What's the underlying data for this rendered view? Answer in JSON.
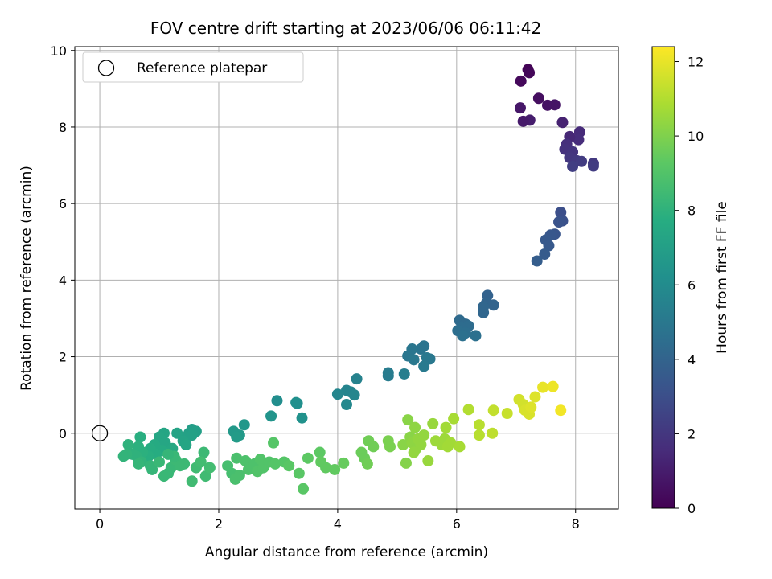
{
  "chart_data": {
    "type": "scatter",
    "title": "FOV centre drift starting at 2023/06/06 06:11:42",
    "xlabel": "Angular distance from reference (arcmin)",
    "ylabel": "Rotation from reference (arcmin)",
    "xlim": [
      -0.42,
      8.72
    ],
    "ylim": [
      -1.98,
      10.1
    ],
    "xticks": [
      0,
      2,
      4,
      6,
      8
    ],
    "yticks": [
      0,
      2,
      4,
      6,
      8,
      10
    ],
    "grid": true,
    "legend": {
      "placement": "top-left",
      "entries": [
        "Reference platepar"
      ]
    },
    "reference_point": {
      "x": 0,
      "y": 0,
      "label": "Reference platepar"
    },
    "colorbar": {
      "label": "Hours from first FF file",
      "colormap": "viridis",
      "min": 0,
      "max": 12.4,
      "ticks": [
        0,
        2,
        4,
        6,
        8,
        10,
        12
      ]
    },
    "points": [
      {
        "x": 7.2,
        "y": 9.5,
        "c": 0.1
      },
      {
        "x": 7.22,
        "y": 9.42,
        "c": 0.2
      },
      {
        "x": 7.08,
        "y": 9.2,
        "c": 0.3
      },
      {
        "x": 7.38,
        "y": 8.75,
        "c": 0.5
      },
      {
        "x": 7.53,
        "y": 8.57,
        "c": 0.6
      },
      {
        "x": 7.65,
        "y": 8.58,
        "c": 0.7
      },
      {
        "x": 7.07,
        "y": 8.5,
        "c": 0.8
      },
      {
        "x": 7.23,
        "y": 8.18,
        "c": 1.0
      },
      {
        "x": 7.12,
        "y": 8.15,
        "c": 0.9
      },
      {
        "x": 7.78,
        "y": 8.12,
        "c": 1.2
      },
      {
        "x": 8.07,
        "y": 7.87,
        "c": 1.5
      },
      {
        "x": 8.05,
        "y": 7.67,
        "c": 1.6
      },
      {
        "x": 7.9,
        "y": 7.75,
        "c": 1.4
      },
      {
        "x": 7.85,
        "y": 7.55,
        "c": 1.7
      },
      {
        "x": 7.82,
        "y": 7.42,
        "c": 1.8
      },
      {
        "x": 7.95,
        "y": 7.35,
        "c": 1.9
      },
      {
        "x": 7.9,
        "y": 7.2,
        "c": 2.0
      },
      {
        "x": 8.02,
        "y": 7.12,
        "c": 2.1
      },
      {
        "x": 8.1,
        "y": 7.1,
        "c": 2.2
      },
      {
        "x": 7.95,
        "y": 6.97,
        "c": 2.3
      },
      {
        "x": 8.3,
        "y": 7.05,
        "c": 2.1
      },
      {
        "x": 8.3,
        "y": 6.98,
        "c": 2.2
      },
      {
        "x": 7.75,
        "y": 5.77,
        "c": 3.0
      },
      {
        "x": 7.78,
        "y": 5.55,
        "c": 3.1
      },
      {
        "x": 7.72,
        "y": 5.52,
        "c": 3.2
      },
      {
        "x": 7.65,
        "y": 5.2,
        "c": 3.3
      },
      {
        "x": 7.58,
        "y": 5.18,
        "c": 3.4
      },
      {
        "x": 7.5,
        "y": 5.05,
        "c": 3.5
      },
      {
        "x": 7.55,
        "y": 4.9,
        "c": 3.5
      },
      {
        "x": 7.48,
        "y": 4.68,
        "c": 3.6
      },
      {
        "x": 7.35,
        "y": 4.5,
        "c": 3.7
      },
      {
        "x": 6.52,
        "y": 3.6,
        "c": 3.9
      },
      {
        "x": 6.5,
        "y": 3.4,
        "c": 4.0
      },
      {
        "x": 6.62,
        "y": 3.35,
        "c": 4.0
      },
      {
        "x": 6.45,
        "y": 3.3,
        "c": 4.1
      },
      {
        "x": 6.45,
        "y": 3.15,
        "c": 4.1
      },
      {
        "x": 6.05,
        "y": 2.95,
        "c": 4.3
      },
      {
        "x": 6.15,
        "y": 2.85,
        "c": 4.3
      },
      {
        "x": 6.2,
        "y": 2.8,
        "c": 4.4
      },
      {
        "x": 6.08,
        "y": 2.75,
        "c": 4.4
      },
      {
        "x": 6.02,
        "y": 2.68,
        "c": 4.5
      },
      {
        "x": 6.15,
        "y": 2.62,
        "c": 4.5
      },
      {
        "x": 6.1,
        "y": 2.55,
        "c": 4.6
      },
      {
        "x": 6.32,
        "y": 2.55,
        "c": 4.6
      },
      {
        "x": 5.45,
        "y": 2.28,
        "c": 4.8
      },
      {
        "x": 5.4,
        "y": 2.2,
        "c": 4.8
      },
      {
        "x": 5.25,
        "y": 2.2,
        "c": 4.9
      },
      {
        "x": 5.18,
        "y": 2.02,
        "c": 4.9
      },
      {
        "x": 5.5,
        "y": 1.97,
        "c": 5.0
      },
      {
        "x": 5.55,
        "y": 1.94,
        "c": 5.0
      },
      {
        "x": 5.28,
        "y": 1.92,
        "c": 5.0
      },
      {
        "x": 5.45,
        "y": 1.75,
        "c": 5.1
      },
      {
        "x": 4.85,
        "y": 1.58,
        "c": 5.2
      },
      {
        "x": 4.85,
        "y": 1.5,
        "c": 5.2
      },
      {
        "x": 5.12,
        "y": 1.55,
        "c": 5.3
      },
      {
        "x": 4.32,
        "y": 1.42,
        "c": 5.5
      },
      {
        "x": 4.15,
        "y": 1.12,
        "c": 5.6
      },
      {
        "x": 4.22,
        "y": 1.08,
        "c": 5.6
      },
      {
        "x": 4.28,
        "y": 1.0,
        "c": 5.7
      },
      {
        "x": 4.0,
        "y": 1.02,
        "c": 5.7
      },
      {
        "x": 4.15,
        "y": 0.75,
        "c": 5.8
      },
      {
        "x": 2.98,
        "y": 0.85,
        "c": 6.1
      },
      {
        "x": 3.3,
        "y": 0.8,
        "c": 6.2
      },
      {
        "x": 3.32,
        "y": 0.78,
        "c": 6.2
      },
      {
        "x": 3.4,
        "y": 0.4,
        "c": 6.3
      },
      {
        "x": 2.88,
        "y": 0.45,
        "c": 6.4
      },
      {
        "x": 2.43,
        "y": 0.22,
        "c": 6.6
      },
      {
        "x": 2.25,
        "y": 0.05,
        "c": 6.7
      },
      {
        "x": 2.35,
        "y": -0.05,
        "c": 6.7
      },
      {
        "x": 2.3,
        "y": -0.1,
        "c": 6.8
      },
      {
        "x": 1.55,
        "y": 0.1,
        "c": 6.9
      },
      {
        "x": 1.62,
        "y": 0.05,
        "c": 7.0
      },
      {
        "x": 1.5,
        "y": 0.0,
        "c": 7.0
      },
      {
        "x": 1.45,
        "y": -0.1,
        "c": 7.1
      },
      {
        "x": 1.55,
        "y": -0.05,
        "c": 7.1
      },
      {
        "x": 1.3,
        "y": 0.0,
        "c": 7.2
      },
      {
        "x": 1.4,
        "y": -0.2,
        "c": 7.2
      },
      {
        "x": 1.45,
        "y": -0.3,
        "c": 7.3
      },
      {
        "x": 1.08,
        "y": 0.0,
        "c": 7.3
      },
      {
        "x": 1.0,
        "y": -0.1,
        "c": 7.4
      },
      {
        "x": 1.1,
        "y": -0.25,
        "c": 7.4
      },
      {
        "x": 1.22,
        "y": -0.4,
        "c": 7.5
      },
      {
        "x": 1.05,
        "y": -0.45,
        "c": 7.6
      },
      {
        "x": 0.92,
        "y": -0.3,
        "c": 7.6
      },
      {
        "x": 0.95,
        "y": -0.55,
        "c": 7.7
      },
      {
        "x": 0.85,
        "y": -0.4,
        "c": 7.7
      },
      {
        "x": 0.82,
        "y": -0.6,
        "c": 7.8
      },
      {
        "x": 0.68,
        "y": -0.1,
        "c": 7.8
      },
      {
        "x": 0.65,
        "y": -0.35,
        "c": 7.9
      },
      {
        "x": 0.72,
        "y": -0.5,
        "c": 7.9
      },
      {
        "x": 0.62,
        "y": -0.6,
        "c": 8.0
      },
      {
        "x": 0.55,
        "y": -0.55,
        "c": 8.0
      },
      {
        "x": 0.48,
        "y": -0.3,
        "c": 8.0
      },
      {
        "x": 0.45,
        "y": -0.55,
        "c": 8.1
      },
      {
        "x": 0.4,
        "y": -0.6,
        "c": 8.1
      },
      {
        "x": 0.7,
        "y": -0.75,
        "c": 8.1
      },
      {
        "x": 0.65,
        "y": -0.8,
        "c": 8.2
      },
      {
        "x": 0.85,
        "y": -0.85,
        "c": 8.2
      },
      {
        "x": 0.88,
        "y": -0.95,
        "c": 8.2
      },
      {
        "x": 1.0,
        "y": -0.75,
        "c": 8.3
      },
      {
        "x": 1.08,
        "y": -1.12,
        "c": 8.3
      },
      {
        "x": 1.15,
        "y": -1.05,
        "c": 8.3
      },
      {
        "x": 1.2,
        "y": -0.9,
        "c": 8.3
      },
      {
        "x": 1.28,
        "y": -0.7,
        "c": 8.4
      },
      {
        "x": 1.35,
        "y": -0.85,
        "c": 8.4
      },
      {
        "x": 1.42,
        "y": -0.8,
        "c": 8.4
      },
      {
        "x": 1.55,
        "y": -1.25,
        "c": 8.5
      },
      {
        "x": 1.62,
        "y": -0.9,
        "c": 8.5
      },
      {
        "x": 1.78,
        "y": -1.12,
        "c": 8.5
      },
      {
        "x": 1.75,
        "y": -0.5,
        "c": 8.4
      },
      {
        "x": 1.85,
        "y": -0.9,
        "c": 8.6
      },
      {
        "x": 1.7,
        "y": -0.75,
        "c": 8.6
      },
      {
        "x": 1.25,
        "y": -0.6,
        "c": 8.3
      },
      {
        "x": 1.15,
        "y": -0.55,
        "c": 8.2
      },
      {
        "x": 2.15,
        "y": -0.85,
        "c": 8.7
      },
      {
        "x": 2.22,
        "y": -1.05,
        "c": 8.7
      },
      {
        "x": 2.28,
        "y": -1.2,
        "c": 8.8
      },
      {
        "x": 2.35,
        "y": -1.1,
        "c": 8.8
      },
      {
        "x": 2.3,
        "y": -0.65,
        "c": 8.8
      },
      {
        "x": 2.45,
        "y": -0.72,
        "c": 8.9
      },
      {
        "x": 2.5,
        "y": -0.95,
        "c": 8.9
      },
      {
        "x": 2.6,
        "y": -0.8,
        "c": 8.9
      },
      {
        "x": 2.65,
        "y": -1.0,
        "c": 9.0
      },
      {
        "x": 2.75,
        "y": -0.9,
        "c": 9.0
      },
      {
        "x": 2.7,
        "y": -0.68,
        "c": 9.0
      },
      {
        "x": 2.85,
        "y": -0.75,
        "c": 9.0
      },
      {
        "x": 2.92,
        "y": -0.25,
        "c": 9.1
      },
      {
        "x": 2.95,
        "y": -0.8,
        "c": 9.1
      },
      {
        "x": 3.1,
        "y": -0.75,
        "c": 9.1
      },
      {
        "x": 3.18,
        "y": -0.85,
        "c": 9.2
      },
      {
        "x": 3.35,
        "y": -1.05,
        "c": 9.2
      },
      {
        "x": 3.42,
        "y": -1.45,
        "c": 9.2
      },
      {
        "x": 3.5,
        "y": -0.65,
        "c": 9.3
      },
      {
        "x": 3.7,
        "y": -0.5,
        "c": 9.3
      },
      {
        "x": 3.72,
        "y": -0.75,
        "c": 9.4
      },
      {
        "x": 3.8,
        "y": -0.9,
        "c": 9.4
      },
      {
        "x": 3.95,
        "y": -0.95,
        "c": 9.4
      },
      {
        "x": 4.1,
        "y": -0.78,
        "c": 9.5
      },
      {
        "x": 4.4,
        "y": -0.5,
        "c": 9.6
      },
      {
        "x": 4.45,
        "y": -0.65,
        "c": 9.6
      },
      {
        "x": 4.5,
        "y": -0.8,
        "c": 9.7
      },
      {
        "x": 4.52,
        "y": -0.2,
        "c": 9.7
      },
      {
        "x": 4.6,
        "y": -0.35,
        "c": 9.7
      },
      {
        "x": 4.85,
        "y": -0.2,
        "c": 9.9
      },
      {
        "x": 4.88,
        "y": -0.35,
        "c": 9.9
      },
      {
        "x": 5.15,
        "y": -0.78,
        "c": 10.1
      },
      {
        "x": 5.1,
        "y": -0.3,
        "c": 10.2
      },
      {
        "x": 5.18,
        "y": 0.35,
        "c": 10.2
      },
      {
        "x": 5.22,
        "y": -0.1,
        "c": 10.2
      },
      {
        "x": 5.25,
        "y": -0.25,
        "c": 10.3
      },
      {
        "x": 5.3,
        "y": 0.15,
        "c": 10.3
      },
      {
        "x": 5.32,
        "y": -0.4,
        "c": 10.3
      },
      {
        "x": 5.35,
        "y": -0.15,
        "c": 10.4
      },
      {
        "x": 5.4,
        "y": -0.3,
        "c": 10.4
      },
      {
        "x": 5.28,
        "y": -0.5,
        "c": 10.4
      },
      {
        "x": 5.45,
        "y": -0.05,
        "c": 10.4
      },
      {
        "x": 5.52,
        "y": -0.72,
        "c": 10.5
      },
      {
        "x": 5.6,
        "y": 0.25,
        "c": 10.5
      },
      {
        "x": 5.65,
        "y": -0.2,
        "c": 10.6
      },
      {
        "x": 5.75,
        "y": -0.3,
        "c": 10.6
      },
      {
        "x": 5.8,
        "y": -0.15,
        "c": 10.6
      },
      {
        "x": 5.85,
        "y": -0.35,
        "c": 10.7
      },
      {
        "x": 5.82,
        "y": 0.15,
        "c": 10.7
      },
      {
        "x": 5.9,
        "y": -0.25,
        "c": 10.7
      },
      {
        "x": 5.95,
        "y": 0.38,
        "c": 10.8
      },
      {
        "x": 6.05,
        "y": -0.35,
        "c": 10.8
      },
      {
        "x": 6.2,
        "y": 0.62,
        "c": 11.0
      },
      {
        "x": 6.38,
        "y": 0.22,
        "c": 11.1
      },
      {
        "x": 6.38,
        "y": -0.05,
        "c": 11.1
      },
      {
        "x": 6.6,
        "y": 0.0,
        "c": 11.2
      },
      {
        "x": 6.62,
        "y": 0.6,
        "c": 11.3
      },
      {
        "x": 6.85,
        "y": 0.52,
        "c": 11.4
      },
      {
        "x": 7.05,
        "y": 0.88,
        "c": 11.6
      },
      {
        "x": 7.12,
        "y": 0.75,
        "c": 11.6
      },
      {
        "x": 7.15,
        "y": 0.6,
        "c": 11.7
      },
      {
        "x": 7.22,
        "y": 0.5,
        "c": 11.7
      },
      {
        "x": 7.25,
        "y": 0.68,
        "c": 11.8
      },
      {
        "x": 7.32,
        "y": 0.95,
        "c": 11.8
      },
      {
        "x": 7.45,
        "y": 1.2,
        "c": 12.0
      },
      {
        "x": 7.62,
        "y": 1.22,
        "c": 12.1
      },
      {
        "x": 7.75,
        "y": 0.6,
        "c": 12.2
      }
    ]
  }
}
